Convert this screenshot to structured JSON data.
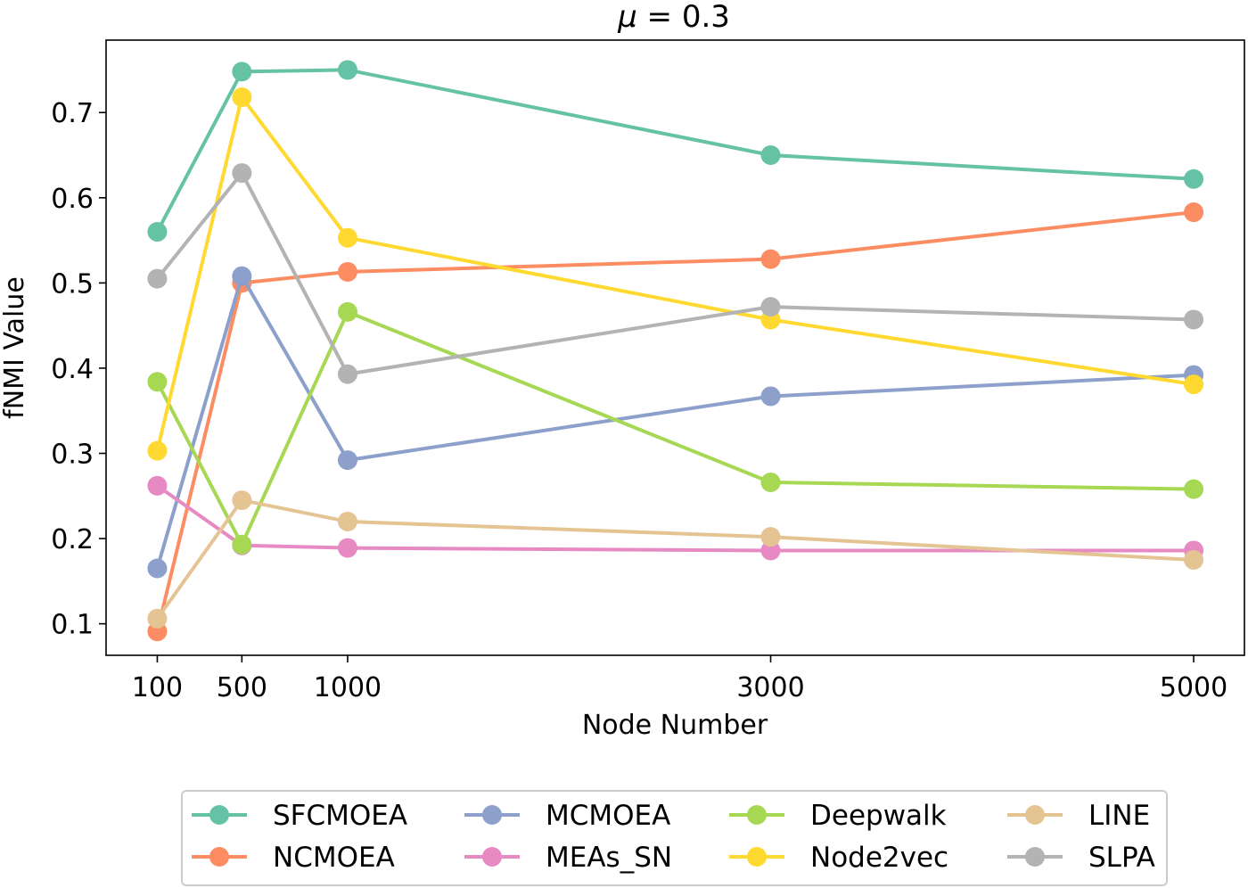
{
  "chart_data": {
    "type": "line",
    "title": "μ = 0.3",
    "title_mu": "μ",
    "title_rest": " = 0.3",
    "xlabel": "Node Number",
    "ylabel": "fNMI Value",
    "x": [
      100,
      500,
      1000,
      3000,
      5000
    ],
    "x_tick_labels": [
      "100",
      "500",
      "1000",
      "3000",
      "5000"
    ],
    "y_ticks": [
      0.1,
      0.2,
      0.3,
      0.4,
      0.5,
      0.6,
      0.7
    ],
    "y_tick_labels": [
      "0.1",
      "0.2",
      "0.3",
      "0.4",
      "0.5",
      "0.6",
      "0.7"
    ],
    "xlim": [
      -142,
      5240
    ],
    "ylim": [
      0.063,
      0.785
    ],
    "grid": false,
    "legend_position": "bottom-center",
    "series": [
      {
        "name": "SFCMOEA",
        "color": "#66c2a5",
        "values": [
          0.56,
          0.748,
          0.75,
          0.65,
          0.622
        ]
      },
      {
        "name": "NCMOEA",
        "color": "#fc8d62",
        "values": [
          0.091,
          0.5,
          0.513,
          0.528,
          0.583
        ]
      },
      {
        "name": "MCMOEA",
        "color": "#8da0cb",
        "values": [
          0.165,
          0.508,
          0.292,
          0.367,
          0.392
        ]
      },
      {
        "name": "MEAs_SN",
        "color": "#e78ac3",
        "values": [
          0.262,
          0.192,
          0.189,
          0.186,
          0.186
        ]
      },
      {
        "name": "Deepwalk",
        "color": "#a6d854",
        "values": [
          0.384,
          0.193,
          0.466,
          0.266,
          0.258
        ]
      },
      {
        "name": "Node2vec",
        "color": "#ffd92f",
        "values": [
          0.303,
          0.718,
          0.553,
          0.457,
          0.381
        ]
      },
      {
        "name": "LINE",
        "color": "#e5c494",
        "values": [
          0.106,
          0.245,
          0.22,
          0.202,
          0.175
        ]
      },
      {
        "name": "SLPA",
        "color": "#b3b3b3",
        "values": [
          0.505,
          0.629,
          0.393,
          0.472,
          0.457
        ]
      }
    ]
  }
}
